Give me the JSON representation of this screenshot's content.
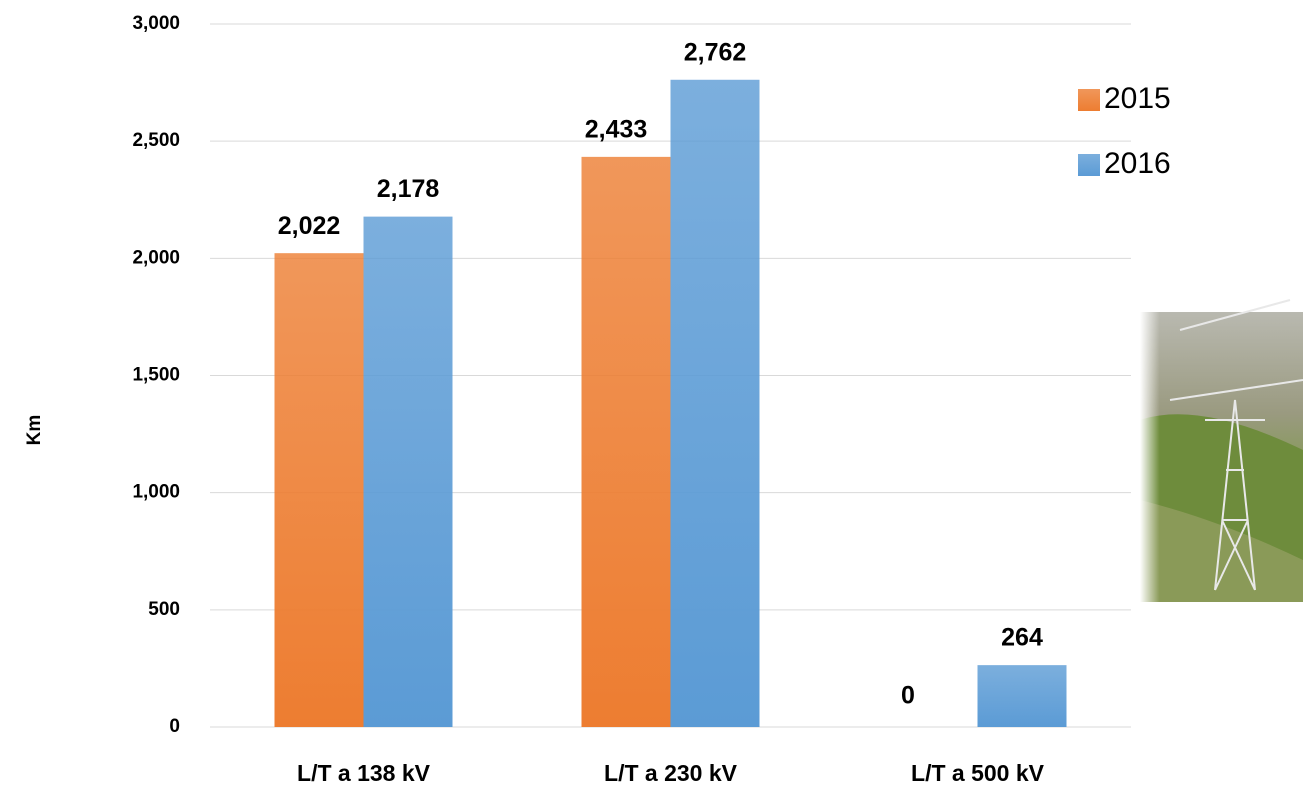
{
  "chart_data": {
    "type": "bar",
    "y_label": "Km",
    "categories": [
      "L/T a 138 kV",
      "L/T a 230 kV",
      "L/T a 500 kV"
    ],
    "series": [
      {
        "name": "2015",
        "color": "#ed7d31",
        "values": [
          2022,
          2433,
          0
        ],
        "value_labels": [
          "2,022",
          "2,433",
          "0"
        ]
      },
      {
        "name": "2016",
        "color": "#5b9bd5",
        "values": [
          2178,
          2762,
          264
        ],
        "value_labels": [
          "2,178",
          "2,762",
          "264"
        ]
      }
    ],
    "ylim": [
      0,
      3000
    ],
    "yticks": [
      0,
      {
        "value": 500,
        "label": "500"
      },
      {
        "value": 1000,
        "label": "1,000"
      },
      {
        "value": 1500,
        "label": "1,500"
      },
      {
        "value": 2000,
        "label": "2,000"
      },
      {
        "value": 2500,
        "label": "2,500"
      },
      {
        "value": 3000,
        "label": "3,000"
      }
    ],
    "grid": true,
    "legend": "right"
  }
}
